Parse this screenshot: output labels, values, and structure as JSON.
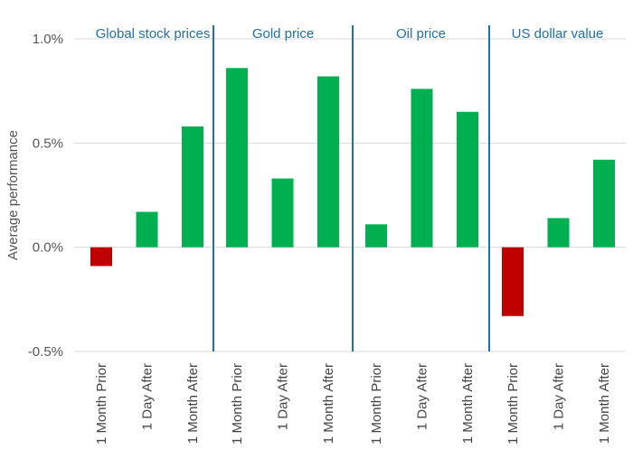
{
  "chart_data": {
    "type": "bar",
    "ylabel": "Average performance",
    "ylim": [
      -0.5,
      1.0
    ],
    "yticks": [
      1.0,
      0.5,
      0.0,
      -0.5
    ],
    "ytick_labels": [
      "1.0%",
      "0.5%",
      "0.0%",
      "-0.5%"
    ],
    "grid": "horizontal",
    "categories": [
      "1 Month Prior",
      "1 Day After",
      "1 Month After"
    ],
    "panels": [
      {
        "name": "Global stock prices",
        "values": [
          -0.09,
          0.17,
          0.58
        ]
      },
      {
        "name": "Gold price",
        "values": [
          0.86,
          0.33,
          0.82
        ]
      },
      {
        "name": "Oil price",
        "values": [
          0.11,
          0.76,
          0.65
        ]
      },
      {
        "name": "US dollar value",
        "values": [
          -0.33,
          0.14,
          0.42
        ]
      }
    ],
    "colors": {
      "positive": "#00b050",
      "negative": "#c00000",
      "divider": "#1f6fa8",
      "panel_title": "#1f6fa8",
      "grid": "#d9d9d9"
    }
  }
}
